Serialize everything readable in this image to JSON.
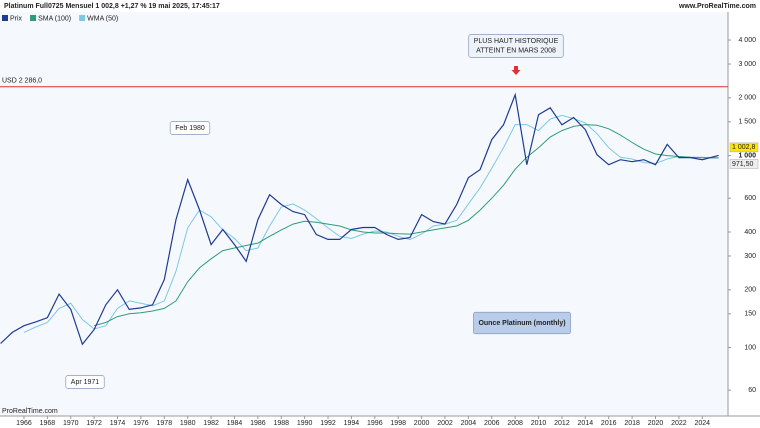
{
  "chart_data": {
    "type": "line",
    "title": "Platinum Full0725 Mensuel 1 002,8 +1,27 % 19 mai 2025, 17:45:17",
    "source": "www.ProRealTime.com",
    "footer": "ProRealTime.com",
    "log_scale": true,
    "x": [
      1964,
      1965,
      1966,
      1967,
      1968,
      1969,
      1970,
      1971,
      1972,
      1973,
      1974,
      1975,
      1976,
      1977,
      1978,
      1979,
      1980,
      1981,
      1982,
      1983,
      1984,
      1985,
      1986,
      1987,
      1988,
      1989,
      1990,
      1991,
      1992,
      1993,
      1994,
      1995,
      1996,
      1997,
      1998,
      1999,
      2000,
      2001,
      2002,
      2003,
      2004,
      2005,
      2006,
      2007,
      2008,
      2009,
      2010,
      2011,
      2012,
      2013,
      2014,
      2015,
      2016,
      2017,
      2018,
      2019,
      2020,
      2021,
      2022,
      2023,
      2024,
      2025.4
    ],
    "series": [
      {
        "name": "Prix",
        "color": "#1f3a93",
        "values": [
          105,
          120,
          130,
          136,
          143,
          190,
          158,
          104,
          124,
          167,
          200,
          158,
          161,
          167,
          226,
          464,
          750,
          524,
          344,
          412,
          344,
          281,
          464,
          626,
          556,
          511,
          493,
          388,
          366,
          366,
          412,
          422,
          422,
          388,
          366,
          374,
          493,
          453,
          440,
          556,
          768,
          846,
          1212,
          1448,
          2075,
          897,
          1634,
          1775,
          1448,
          1580,
          1367,
          1011,
          897,
          952,
          930,
          952,
          897,
          1144,
          977,
          977,
          952,
          1002.8
        ],
        "last_value": {
          "value": 1002.8,
          "label": "1 002,8"
        }
      },
      {
        "name": "SMA (100)",
        "color": "#2e9c7a",
        "values": [
          null,
          null,
          null,
          null,
          null,
          null,
          null,
          null,
          130,
          135,
          145,
          150,
          152,
          155,
          160,
          175,
          220,
          260,
          290,
          320,
          330,
          340,
          350,
          380,
          410,
          440,
          455,
          450,
          440,
          430,
          410,
          400,
          395,
          395,
          392,
          390,
          400,
          410,
          420,
          430,
          460,
          520,
          600,
          700,
          850,
          980,
          1100,
          1250,
          1350,
          1420,
          1450,
          1440,
          1380,
          1280,
          1170,
          1080,
          1020,
          1000,
          990,
          980,
          975,
          971.5
        ],
        "last_value": {
          "value": 971.5,
          "label": "971,50"
        }
      },
      {
        "name": "WMA (50)",
        "color": "#7ec8e3",
        "values": [
          null,
          null,
          120,
          128,
          135,
          160,
          170,
          140,
          125,
          130,
          160,
          175,
          170,
          165,
          175,
          250,
          420,
          520,
          480,
          410,
          370,
          320,
          330,
          430,
          540,
          560,
          520,
          470,
          420,
          380,
          370,
          390,
          405,
          400,
          380,
          365,
          390,
          430,
          440,
          460,
          560,
          680,
          860,
          1100,
          1450,
          1450,
          1350,
          1550,
          1620,
          1560,
          1480,
          1300,
          1100,
          980,
          960,
          920,
          910,
          960,
          990,
          980,
          980,
          975
        ]
      }
    ],
    "xlim": [
      1963.95,
      2026.2
    ],
    "xticks": [
      1966,
      1968,
      1970,
      1972,
      1974,
      1976,
      1978,
      1980,
      1982,
      1984,
      1986,
      1988,
      1990,
      1992,
      1994,
      1996,
      1998,
      2000,
      2002,
      2004,
      2006,
      2008,
      2010,
      2012,
      2014,
      2016,
      2018,
      2020,
      2022,
      2024
    ],
    "ylim": [
      44,
      5600
    ],
    "yticks": [
      {
        "value": 4000,
        "label": "4 000"
      },
      {
        "value": 3000,
        "label": "3 000"
      },
      {
        "value": 2000,
        "label": "2 000"
      },
      {
        "value": 1500,
        "label": "1 500"
      },
      {
        "value": 1000,
        "label": "1 000"
      },
      600,
      400,
      300,
      200,
      150,
      100,
      60
    ],
    "hline": {
      "value": 2286.0,
      "label": "USD 2 286,0",
      "color": "#e03030"
    },
    "annotations": [
      {
        "lines": [
          "PLUS HAUT HISTORIQUE",
          "ATTEINT EN MARS 2008"
        ]
      },
      {
        "lines": [
          "Feb 1980"
        ]
      },
      {
        "lines": [
          "Apr 1971"
        ]
      },
      {
        "lines": [
          "Ounce Platinum (monthly)"
        ]
      }
    ]
  }
}
